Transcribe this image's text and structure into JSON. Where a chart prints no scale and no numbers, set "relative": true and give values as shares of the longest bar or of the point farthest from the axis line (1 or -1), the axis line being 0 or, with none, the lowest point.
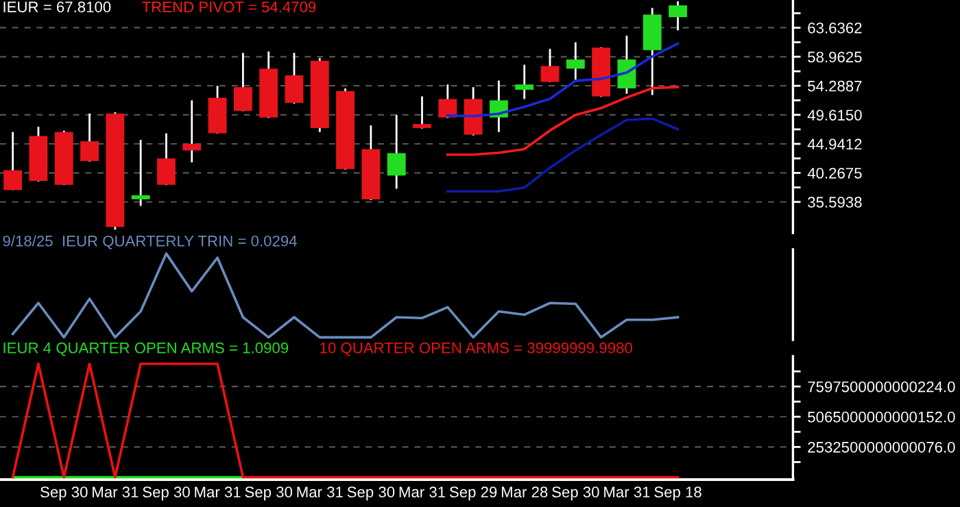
{
  "chart_data": [
    {
      "type": "candlestick",
      "title": "IEUR = 67.8100",
      "legend": "top left",
      "grid": "y",
      "tick_labels": "y",
      "categories": [
        null,
        null,
        null,
        null,
        null,
        null,
        null,
        null,
        null,
        null,
        null,
        null,
        null,
        null,
        null,
        null,
        null,
        null,
        null,
        null,
        null,
        null,
        null,
        null,
        null,
        null,
        null,
        null,
        null,
        null,
        null
      ],
      "ohlc": [
        [
          40.69,
          46.85,
          37.5,
          37.51
        ],
        [
          46.21,
          47.7,
          38.9,
          38.99
        ],
        [
          46.85,
          47.06,
          38.3,
          38.36
        ],
        [
          45.36,
          49.82,
          42.1,
          42.18
        ],
        [
          49.82,
          50.04,
          31.13,
          31.56
        ],
        [
          36.02,
          45.58,
          34.96,
          36.66
        ],
        [
          42.6,
          46.64,
          38.3,
          38.36
        ],
        [
          44.94,
          51.95,
          41.97,
          43.88
        ],
        [
          52.37,
          54.28,
          46.6,
          46.64
        ],
        [
          54.07,
          59.59,
          50.2,
          50.25
        ],
        [
          57.05,
          59.81,
          49.1,
          49.19
        ],
        [
          55.98,
          59.59,
          51.4,
          51.52
        ],
        [
          58.32,
          58.75,
          46.85,
          47.49
        ],
        [
          53.44,
          53.86,
          40.8,
          40.9
        ],
        [
          44.09,
          47.91,
          35.9,
          36.02
        ],
        [
          39.84,
          49.61,
          37.72,
          43.45
        ],
        [
          48.13,
          52.59,
          47.4,
          47.49
        ],
        [
          52.16,
          54.5,
          49.1,
          49.19
        ],
        [
          52.16,
          54.07,
          46.3,
          46.43
        ],
        [
          49.19,
          55.13,
          46.85,
          51.95
        ],
        [
          53.65,
          57.68,
          52.16,
          54.5
        ],
        [
          57.47,
          60.23,
          54.9,
          54.92
        ],
        [
          57.05,
          61.29,
          54.92,
          58.53
        ],
        [
          60.44,
          60.5,
          52.5,
          52.59
        ],
        [
          53.86,
          62.36,
          53.01,
          58.53
        ],
        [
          60.02,
          66.82,
          52.8,
          65.76
        ],
        [
          65.33,
          67.88,
          63.21,
          67.24
        ],
        null,
        null,
        null,
        null
      ],
      "series": [
        {
          "type": "line",
          "color": "#1a2ad8",
          "values": [
            null,
            null,
            null,
            null,
            null,
            null,
            null,
            null,
            null,
            null,
            null,
            null,
            null,
            null,
            null,
            null,
            null,
            49.5,
            49.4,
            49.8,
            50.9,
            52.2,
            55.1,
            55.4,
            56.4,
            59.0,
            61.1,
            null,
            null,
            null,
            null
          ]
        },
        {
          "type": "line",
          "name": "TREND PIVOT = 54.4709",
          "color": "#ff1a1a",
          "values": [
            null,
            null,
            null,
            null,
            null,
            null,
            null,
            null,
            null,
            null,
            null,
            null,
            null,
            null,
            null,
            null,
            null,
            43.2,
            43.2,
            43.5,
            44.1,
            47.1,
            49.6,
            50.7,
            52.4,
            53.9,
            54.1,
            null,
            null,
            null,
            null
          ]
        },
        {
          "type": "line",
          "color": "#0c1ca8",
          "values": [
            null,
            null,
            null,
            null,
            null,
            null,
            null,
            null,
            null,
            null,
            null,
            null,
            null,
            null,
            null,
            null,
            null,
            37.3,
            37.3,
            37.3,
            37.9,
            41.1,
            43.9,
            46.4,
            48.8,
            49.0,
            47.3,
            null,
            null,
            null,
            null
          ]
        }
      ],
      "ylim": [
        30.6,
        68.1
      ],
      "yticks": [
        35.5938,
        {
          "value": 37.9306,
          "label": null
        },
        40.2675,
        {
          "value": 42.6044,
          "label": null
        },
        44.9412,
        {
          "value": 47.2781,
          "label": null
        },
        {
          "value": 49.615,
          "label": "49.6150"
        },
        {
          "value": 51.9519,
          "label": null
        },
        54.2887,
        {
          "value": 56.6256,
          "label": null
        },
        58.9625,
        {
          "value": 61.2994,
          "label": null
        },
        63.6362,
        {
          "value": 65.9731,
          "label": null
        }
      ]
    },
    {
      "type": "line",
      "relative": true,
      "legend": "top left",
      "tick_labels": false,
      "categories": [
        null,
        null,
        null,
        null,
        null,
        null,
        null,
        null,
        null,
        null,
        null,
        null,
        null,
        null,
        null,
        null,
        null,
        null,
        null,
        null,
        null,
        null,
        null,
        null,
        null,
        null,
        null,
        null,
        null,
        null,
        null
      ],
      "series": [
        {
          "name": "9/18/25  IEUR QUARTERLY TRIN = 0.0294",
          "color": "#6a8cbf",
          "values": [
            0.04,
            0.41,
            0,
            0.46,
            0,
            0.31,
            1,
            0.55,
            0.95,
            0.24,
            0,
            0.24,
            0,
            0,
            0,
            0.24,
            0.23,
            0.36,
            0,
            0.31,
            0.27,
            0.41,
            0.4,
            0,
            0.21,
            0.21,
            0.24,
            null,
            null,
            null,
            null
          ]
        }
      ]
    },
    {
      "type": "line",
      "legend": "top left",
      "grid": "y",
      "categories": [
        null,
        null,
        "Sep 30",
        null,
        "Mar 31",
        null,
        "Sep 30",
        null,
        "Mar 31",
        null,
        "Sep 30",
        null,
        "Mar 31",
        null,
        "Sep 30",
        null,
        "Mar 31",
        null,
        "Sep 29",
        null,
        "Mar 28",
        null,
        "Sep 30",
        null,
        "Mar 31",
        null,
        "Sep 18",
        null,
        null,
        null,
        null
      ],
      "series": [
        {
          "name": "IEUR 4 QUARTER OPEN ARMS = 1.0909",
          "color": "#22dd22",
          "values": [
            0,
            0,
            0,
            0,
            0,
            0,
            0,
            0,
            0,
            0,
            null,
            null,
            null,
            null,
            null,
            null,
            null,
            null,
            null,
            null,
            null,
            null,
            null,
            null,
            null,
            null,
            null,
            null,
            null,
            null,
            null
          ]
        },
        {
          "name": "10 QUARTER OPEN ARMS = 39999999.9980",
          "color": "#ee1111",
          "values": [
            0,
            9500000000000000,
            0,
            9500000000000000,
            0,
            9500000000000000,
            9500000000000000,
            9500000000000000,
            9500000000000000,
            0,
            0,
            0,
            0,
            0,
            0,
            0,
            0,
            0,
            0,
            0,
            0,
            0,
            0,
            0,
            0,
            0,
            0,
            null,
            null,
            null,
            null
          ]
        }
      ],
      "ylim": [
        -200000000000000,
        10130000000000000
      ],
      "yticks": [
        {
          "value": 1266250000000038,
          "label": null
        },
        {
          "value": 2532500000000076,
          "label": "2532500000000076.0"
        },
        {
          "value": 3798750000000114,
          "label": null
        },
        {
          "value": 5065000000000152,
          "label": "5065000000000152.0"
        },
        {
          "value": 6331250000000190,
          "label": null
        },
        {
          "value": 7597500000000224,
          "label": "7597500000000224.0"
        },
        {
          "value": 8863750000000262,
          "label": null
        }
      ]
    }
  ]
}
